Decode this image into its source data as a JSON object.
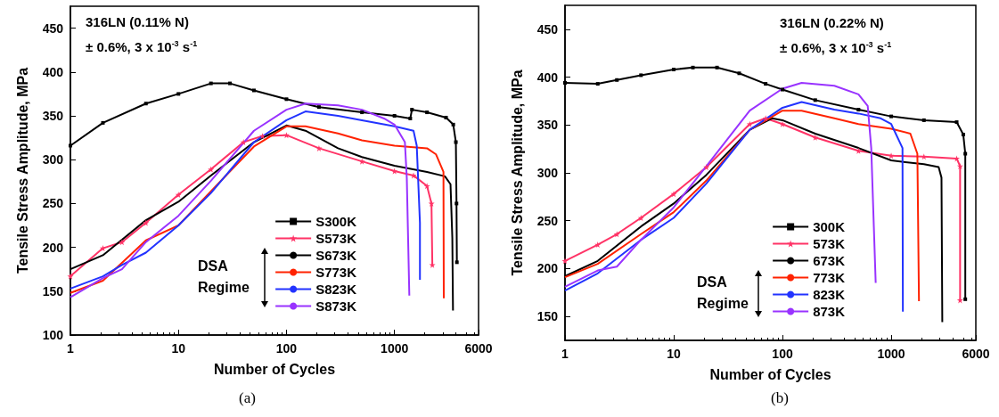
{
  "chart_data": [
    {
      "type": "line",
      "xlabel": "Number of Cycles",
      "ylabel": "Tensile Stress Amplitude, MPa",
      "log": "x",
      "xlim": [
        1,
        6000
      ],
      "xticks": [
        1,
        10,
        100,
        1000,
        6000
      ],
      "ylim": [
        100,
        475
      ],
      "yticks": [
        100,
        150,
        200,
        250,
        300,
        350,
        400,
        450
      ],
      "grid": false,
      "legend": "bottom right",
      "annotations": [
        "316LN (0.11% N)",
        "± 0.6%, 3 x 10$^{-3}$ s$^{-1}$",
        "DSA Regime",
        "(a)"
      ],
      "series": [
        {
          "name": "S300K",
          "color": "#000000",
          "marker": "square",
          "x": [
            1,
            2,
            5,
            10,
            20,
            30,
            50,
            100,
            200,
            500,
            1000,
            1400,
            1450,
            2000,
            3000,
            3500,
            3700,
            3750,
            3780
          ],
          "values": [
            316,
            342,
            364,
            375,
            387,
            387,
            379,
            369,
            360,
            354,
            350,
            347,
            357,
            354,
            348,
            340,
            320,
            250,
            183
          ]
        },
        {
          "name": "S573K",
          "color": "#ff3366",
          "marker": "star",
          "x": [
            1,
            2,
            3,
            5,
            10,
            20,
            40,
            60,
            100,
            200,
            500,
            1000,
            1500,
            2000,
            2200,
            2240
          ],
          "values": [
            167,
            199,
            206,
            228,
            260,
            289,
            320,
            327,
            328,
            313,
            298,
            287,
            282,
            270,
            250,
            180
          ]
        },
        {
          "name": "S673K",
          "color": "#000000",
          "marker": "none",
          "x": [
            1,
            2,
            5,
            10,
            20,
            50,
            100,
            150,
            300,
            500,
            1000,
            2000,
            2930,
            3300,
            3430,
            3480
          ],
          "values": [
            175,
            191,
            231,
            252,
            282,
            320,
            339,
            333,
            313,
            303,
            293,
            286,
            281,
            272,
            211,
            128
          ]
        },
        {
          "name": "S773K",
          "color": "#ff2200",
          "marker": "none",
          "x": [
            1,
            2,
            5,
            10,
            20,
            50,
            100,
            150,
            300,
            500,
            1000,
            2000,
            2425,
            2840,
            2860
          ],
          "values": [
            148,
            162,
            208,
            225,
            264,
            315,
            338,
            338,
            330,
            322,
            316,
            313,
            306,
            286,
            142
          ]
        },
        {
          "name": "S823K",
          "color": "#2233ff",
          "marker": "none",
          "x": [
            1,
            2,
            3,
            5,
            10,
            20,
            50,
            100,
            150,
            300,
            500,
            1000,
            1500,
            1607,
            1720,
            1720
          ],
          "values": [
            153,
            167,
            180,
            194,
            225,
            262,
            320,
            345,
            355,
            350,
            345,
            338,
            333,
            316,
            228,
            163
          ]
        },
        {
          "name": "S873K",
          "color": "#9933ff",
          "marker": "none",
          "x": [
            1,
            2,
            3,
            5,
            10,
            20,
            50,
            100,
            150,
            300,
            500,
            800,
            1000,
            1248,
            1300,
            1372
          ],
          "values": [
            143,
            165,
            175,
            206,
            236,
            276,
            333,
            357,
            364,
            362,
            357,
            347,
            340,
            320,
            279,
            145
          ]
        }
      ]
    },
    {
      "type": "line",
      "xlabel": "Number of Cycles",
      "ylabel": "Tensile Stress Amplitude, MPa",
      "log": "x",
      "xlim": [
        1,
        6000
      ],
      "xticks": [
        1,
        10,
        100,
        1000,
        6000
      ],
      "ylim": [
        125,
        475
      ],
      "yticks": [
        150,
        200,
        250,
        300,
        350,
        400,
        450
      ],
      "grid": false,
      "legend": "bottom right",
      "annotations": [
        "316LN (0.22% N)",
        "± 0.6%, 3 x 10$^{-3}$ s$^{-1}$",
        "DSA Regime",
        "(b)"
      ],
      "series": [
        {
          "name": "300K",
          "color": "#000000",
          "marker": "square",
          "x": [
            1,
            2,
            3,
            5,
            10,
            15,
            25,
            40,
            70,
            100,
            200,
            500,
            1000,
            2000,
            4000,
            4600,
            4800,
            4800
          ],
          "values": [
            394,
            393,
            397,
            402,
            408,
            410,
            410,
            404,
            393,
            387,
            376,
            366,
            359,
            355,
            353,
            340,
            320,
            168
          ]
        },
        {
          "name": "573K",
          "color": "#ff3366",
          "marker": "star",
          "x": [
            1,
            2,
            3,
            5,
            10,
            20,
            50,
            70,
            100,
            200,
            500,
            1000,
            2000,
            4000,
            4300,
            4300
          ],
          "values": [
            208,
            225,
            236,
            253,
            278,
            306,
            351,
            357,
            351,
            337,
            323,
            318,
            317,
            315,
            307,
            167
          ]
        },
        {
          "name": "673K",
          "color": "#000000",
          "marker": "none",
          "x": [
            1,
            2,
            5,
            10,
            20,
            50,
            80,
            100,
            200,
            500,
            1000,
            2000,
            2730,
            2900,
            2950
          ],
          "values": [
            192,
            208,
            244,
            268,
            298,
            345,
            357,
            355,
            341,
            326,
            313,
            309,
            306,
            295,
            144
          ]
        },
        {
          "name": "773K",
          "color": "#ff2200",
          "marker": "none",
          "x": [
            1,
            2,
            5,
            10,
            20,
            50,
            100,
            150,
            300,
            500,
            1000,
            1500,
            1740,
            1800
          ],
          "values": [
            191,
            205,
            236,
            259,
            292,
            345,
            365,
            365,
            357,
            351,
            346,
            341,
            320,
            166
          ]
        },
        {
          "name": "823K",
          "color": "#2233ff",
          "marker": "none",
          "x": [
            1,
            2,
            5,
            10,
            20,
            50,
            100,
            150,
            300,
            500,
            800,
            1000,
            1270,
            1280
          ],
          "values": [
            177,
            195,
            230,
            253,
            289,
            345,
            368,
            374,
            366,
            362,
            357,
            351,
            326,
            155
          ]
        },
        {
          "name": "873K",
          "color": "#9933ff",
          "marker": "none",
          "x": [
            1,
            2,
            3,
            5,
            10,
            20,
            50,
            100,
            150,
            300,
            500,
            608,
            655,
            720
          ],
          "values": [
            181,
            198,
            202,
            230,
            264,
            307,
            365,
            388,
            394,
            391,
            382,
            370,
            326,
            185
          ]
        }
      ]
    }
  ]
}
